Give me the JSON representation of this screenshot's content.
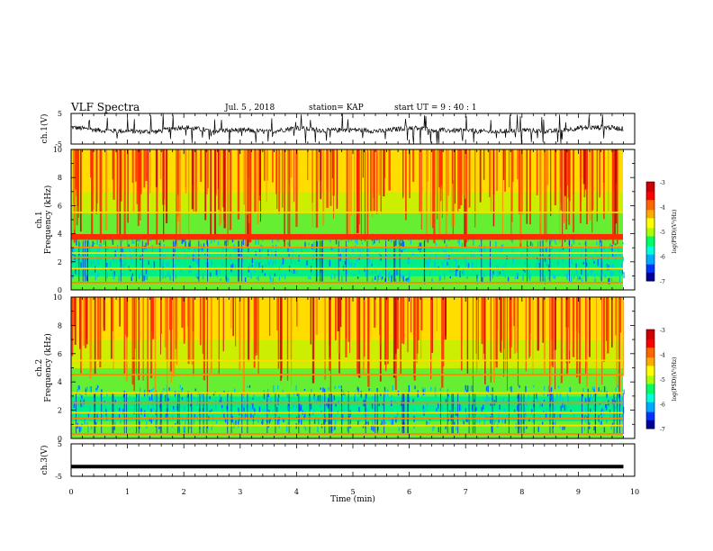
{
  "header": {
    "title": "VLF Spectra",
    "date": "Jul. 5 , 2018",
    "station": "station= KAP",
    "start": "start UT = 9 : 40 : 1"
  },
  "colorbar": {
    "label": "log(PSD)(V²/Hz)",
    "ticks": [
      "-3",
      "-4",
      "-5",
      "-6",
      "-7"
    ],
    "colors": [
      "#cc0000",
      "#ff2a00",
      "#ff8800",
      "#ffdd00",
      "#ccee00",
      "#66ee33",
      "#00ee88",
      "#00c8dd",
      "#0066ff",
      "#0000cc"
    ]
  },
  "chart_data": [
    {
      "type": "line",
      "name": "ch1-waveform",
      "ylabel": "ch.1(V)",
      "ylim": [
        -5,
        5
      ],
      "yticks": [
        "5",
        "-5"
      ],
      "xlim": [
        0,
        10
      ],
      "note_values": "approximate noisy trace between about -2 and +2 V",
      "x": [
        0,
        0.5,
        1,
        1.5,
        2,
        2.5,
        3,
        3.5,
        4,
        4.5,
        5,
        5.5,
        6,
        6.5,
        7,
        7.5,
        8,
        8.5,
        9,
        9.5,
        9.8
      ],
      "y": [
        0.5,
        -0.5,
        -0.8,
        -1.0,
        0.6,
        -0.7,
        -0.4,
        -1.0,
        0.3,
        -0.6,
        -0.3,
        -0.8,
        0.4,
        -0.5,
        -0.6,
        -1.1,
        -0.3,
        -0.9,
        0.2,
        0.5,
        0
      ]
    },
    {
      "type": "heatmap",
      "name": "ch1-spectrogram",
      "ylabel": "ch.1 Frequency (kHz)",
      "ylim": [
        0,
        10
      ],
      "yticks": [
        "0",
        "2",
        "4",
        "6",
        "8",
        "10"
      ],
      "xlim": [
        0,
        10
      ],
      "horizontal_bands_khz": [
        0.5,
        1.5,
        2.3,
        2.6,
        3.0,
        3.7,
        3.9,
        5.5
      ],
      "zlim": [
        -7,
        -3
      ]
    },
    {
      "type": "heatmap",
      "name": "ch2-spectrogram",
      "ylabel": "ch.2 Frequency (kHz)",
      "ylim": [
        0,
        10
      ],
      "yticks": [
        "0",
        "2",
        "4",
        "6",
        "8",
        "10"
      ],
      "xlim": [
        0,
        10
      ],
      "horizontal_bands_khz": [
        0.3,
        0.9,
        1.4,
        1.8,
        2.5,
        3.2,
        4.5,
        5.5
      ],
      "zlim": [
        -7,
        -3
      ]
    },
    {
      "type": "line",
      "name": "ch3-waveform",
      "ylabel": "ch.3(V)",
      "ylim": [
        -5,
        5
      ],
      "yticks": [
        "5",
        "-5"
      ],
      "xlim": [
        0,
        10
      ],
      "x": [
        0,
        9.8
      ],
      "y": [
        -2,
        -2
      ]
    }
  ],
  "xaxis": {
    "label": "Time (min)",
    "ticks": [
      "0",
      "1",
      "2",
      "3",
      "4",
      "5",
      "6",
      "7",
      "8",
      "9",
      "10"
    ]
  }
}
